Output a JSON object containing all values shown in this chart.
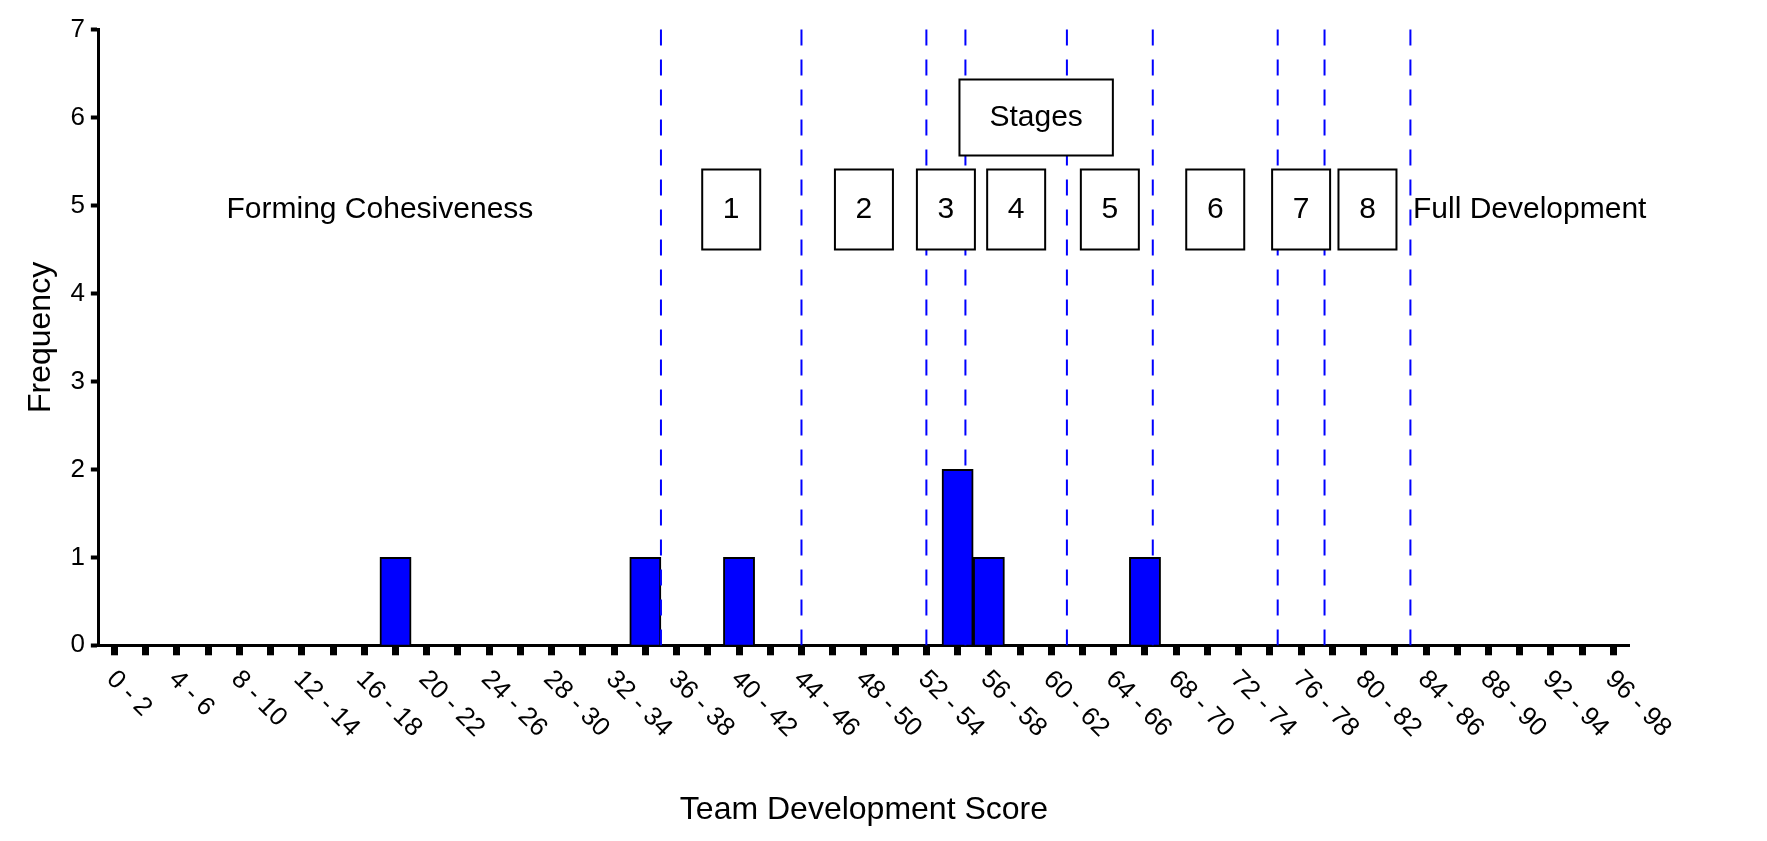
{
  "chart_data": {
    "type": "bar",
    "xlabel": "Team Development Score",
    "ylabel": "Frequency",
    "categories": [
      "0 - 2",
      null,
      "4 - 6",
      null,
      "8 - 10",
      null,
      "12 - 14",
      null,
      "16 - 18",
      null,
      "20 - 22",
      null,
      "24 - 26",
      null,
      "28 - 30",
      null,
      "32 - 34",
      null,
      "36 - 38",
      null,
      "40 - 42",
      null,
      "44 - 46",
      null,
      "48 - 50",
      null,
      "52 - 54",
      null,
      "56 - 58",
      null,
      "60 - 62",
      null,
      "64 - 66",
      null,
      "68 - 70",
      null,
      "72 - 74",
      null,
      "76 - 78",
      null,
      "80 - 82",
      null,
      "84 - 86",
      null,
      "88 - 90",
      null,
      "92 - 94",
      null,
      "96 - 98"
    ],
    "values": [
      null,
      null,
      null,
      null,
      null,
      null,
      null,
      null,
      null,
      1,
      null,
      null,
      null,
      null,
      null,
      null,
      null,
      1,
      null,
      null,
      1,
      null,
      null,
      null,
      null,
      null,
      null,
      2,
      1,
      null,
      null,
      null,
      null,
      1,
      null,
      null,
      null,
      null,
      null,
      null,
      null,
      null,
      null,
      null,
      null,
      null,
      null,
      null,
      null
    ],
    "color": "#0000ff",
    "ylim": [
      0,
      7
    ],
    "yticks": [
      0,
      1,
      2,
      3,
      4,
      5,
      6,
      7
    ],
    "annotations": [
      "Forming Cohesiveness",
      "Stages",
      "1",
      "2",
      "3",
      "4",
      "5",
      "6",
      "7",
      "8",
      "Full Development"
    ]
  }
}
